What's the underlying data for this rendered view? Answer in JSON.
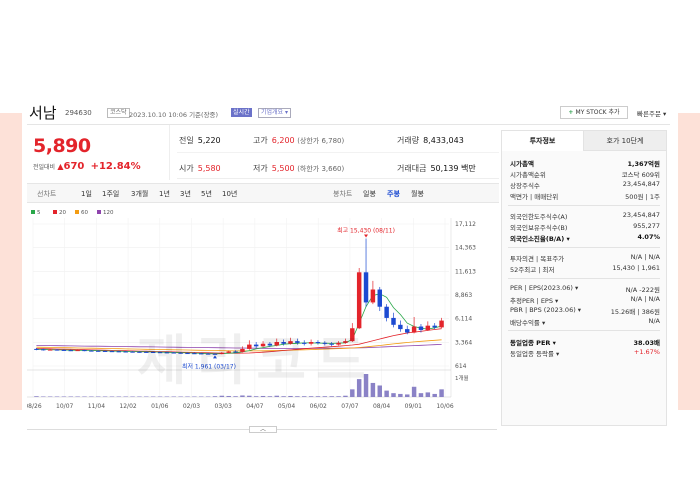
{
  "header": {
    "stock_name": "서남",
    "stock_code": "294630",
    "market": "코스닥",
    "datetime": "2023.10.10 10:06 기준(장중)",
    "badge_realtime": "실시간",
    "badge_company": "기업개요 ▾",
    "mystock_label": "MY STOCK 추가",
    "quick_order_label": "빠른주문 ▾"
  },
  "price": {
    "current": "5,890",
    "change_label": "전일대비",
    "change_amount": "670",
    "change_percent": "+12.84%"
  },
  "stats": {
    "prev_label": "전일",
    "prev_value": "5,220",
    "high_label": "고가",
    "high_value": "6,200",
    "high_sub": "(상한가 6,780)",
    "volume_label": "거래량",
    "volume_value": "8,433,043",
    "open_label": "시가",
    "open_value": "5,580",
    "low_label": "저가",
    "low_value": "5,500",
    "low_sub": "(하한가 3,660)",
    "amount_label": "거래대금",
    "amount_value": "50,139 백만"
  },
  "toolbar": {
    "line_chart": "선차트",
    "periods": [
      "1일",
      "1주일",
      "3개월",
      "1년",
      "3년",
      "5년",
      "10년"
    ],
    "candle_chart": "봉차트",
    "candle_periods": [
      "일봉",
      "주봉",
      "월봉"
    ],
    "active_candle": "주봉"
  },
  "chart_data": {
    "type": "candlestick",
    "legend": [
      "5",
      "20",
      "60",
      "120"
    ],
    "legend_colors": [
      "#2aa84a",
      "#e3242b",
      "#f39c12",
      "#8e44ad"
    ],
    "x_ticks": [
      "08/26",
      "10/07",
      "11/04",
      "12/02",
      "01/06",
      "02/03",
      "03/03",
      "04/07",
      "05/04",
      "06/02",
      "07/07",
      "08/04",
      "09/01",
      "10/06"
    ],
    "y_ticks": [
      17112,
      14363,
      11613,
      8863,
      6114,
      3364,
      614
    ],
    "ylim": [
      614,
      17112
    ],
    "high_annotation": "최고 15,430 (08/11)",
    "low_annotation": "최저 1,961 (03/17)",
    "volume_unit": "1개월",
    "candles": [
      {
        "o": 2600,
        "c": 2550,
        "h": 2700,
        "l": 2450
      },
      {
        "o": 2550,
        "c": 2500,
        "h": 2650,
        "l": 2400
      },
      {
        "o": 2500,
        "c": 2520,
        "h": 2600,
        "l": 2420
      },
      {
        "o": 2520,
        "c": 2480,
        "h": 2580,
        "l": 2400
      },
      {
        "o": 2480,
        "c": 2450,
        "h": 2550,
        "l": 2380
      },
      {
        "o": 2450,
        "c": 2430,
        "h": 2520,
        "l": 2350
      },
      {
        "o": 2430,
        "c": 2460,
        "h": 2530,
        "l": 2360
      },
      {
        "o": 2460,
        "c": 2400,
        "h": 2520,
        "l": 2330
      },
      {
        "o": 2400,
        "c": 2380,
        "h": 2460,
        "l": 2300
      },
      {
        "o": 2380,
        "c": 2360,
        "h": 2440,
        "l": 2280
      },
      {
        "o": 2360,
        "c": 2340,
        "h": 2420,
        "l": 2260
      },
      {
        "o": 2340,
        "c": 2320,
        "h": 2400,
        "l": 2250
      },
      {
        "o": 2320,
        "c": 2300,
        "h": 2380,
        "l": 2220
      },
      {
        "o": 2300,
        "c": 2280,
        "h": 2360,
        "l": 2200
      },
      {
        "o": 2280,
        "c": 2260,
        "h": 2340,
        "l": 2180
      },
      {
        "o": 2260,
        "c": 2250,
        "h": 2320,
        "l": 2170
      },
      {
        "o": 2250,
        "c": 2240,
        "h": 2310,
        "l": 2160
      },
      {
        "o": 2240,
        "c": 2220,
        "h": 2300,
        "l": 2150
      },
      {
        "o": 2220,
        "c": 2200,
        "h": 2280,
        "l": 2120
      },
      {
        "o": 2200,
        "c": 2180,
        "h": 2260,
        "l": 2100
      },
      {
        "o": 2180,
        "c": 2150,
        "h": 2240,
        "l": 2080
      },
      {
        "o": 2150,
        "c": 2120,
        "h": 2220,
        "l": 2050
      },
      {
        "o": 2120,
        "c": 2100,
        "h": 2200,
        "l": 2030
      },
      {
        "o": 2100,
        "c": 2080,
        "h": 2180,
        "l": 2010
      },
      {
        "o": 2080,
        "c": 2050,
        "h": 2150,
        "l": 1990
      },
      {
        "o": 2050,
        "c": 2030,
        "h": 2120,
        "l": 1980
      },
      {
        "o": 2030,
        "c": 2000,
        "h": 2100,
        "l": 1961
      },
      {
        "o": 2000,
        "c": 2150,
        "h": 2250,
        "l": 1970
      },
      {
        "o": 2150,
        "c": 2300,
        "h": 2400,
        "l": 2100
      },
      {
        "o": 2300,
        "c": 2250,
        "h": 2450,
        "l": 2150
      },
      {
        "o": 2250,
        "c": 2600,
        "h": 2900,
        "l": 2200
      },
      {
        "o": 2600,
        "c": 3100,
        "h": 3600,
        "l": 2500
      },
      {
        "o": 3100,
        "c": 2900,
        "h": 3400,
        "l": 2700
      },
      {
        "o": 2900,
        "c": 3200,
        "h": 3500,
        "l": 2800
      },
      {
        "o": 3200,
        "c": 3000,
        "h": 3400,
        "l": 2850
      },
      {
        "o": 3000,
        "c": 3400,
        "h": 3800,
        "l": 2900
      },
      {
        "o": 3400,
        "c": 3200,
        "h": 3700,
        "l": 3000
      },
      {
        "o": 3200,
        "c": 3500,
        "h": 3900,
        "l": 3100
      },
      {
        "o": 3500,
        "c": 3300,
        "h": 3800,
        "l": 3100
      },
      {
        "o": 3300,
        "c": 3200,
        "h": 3600,
        "l": 3000
      },
      {
        "o": 3200,
        "c": 3400,
        "h": 3700,
        "l": 3000
      },
      {
        "o": 3400,
        "c": 3300,
        "h": 3600,
        "l": 3100
      },
      {
        "o": 3300,
        "c": 3200,
        "h": 3500,
        "l": 3000
      },
      {
        "o": 3200,
        "c": 3100,
        "h": 3400,
        "l": 2900
      },
      {
        "o": 3100,
        "c": 3300,
        "h": 3500,
        "l": 3000
      },
      {
        "o": 3300,
        "c": 3500,
        "h": 3800,
        "l": 3200
      },
      {
        "o": 3500,
        "c": 5000,
        "h": 5600,
        "l": 3400
      },
      {
        "o": 5000,
        "c": 11500,
        "h": 12000,
        "l": 4900
      },
      {
        "o": 11500,
        "c": 8000,
        "h": 15430,
        "l": 7500
      },
      {
        "o": 8000,
        "c": 9500,
        "h": 10500,
        "l": 7800
      },
      {
        "o": 9500,
        "c": 7500,
        "h": 9800,
        "l": 7000
      },
      {
        "o": 7500,
        "c": 6200,
        "h": 7800,
        "l": 5800
      },
      {
        "o": 6200,
        "c": 5400,
        "h": 6800,
        "l": 5100
      },
      {
        "o": 5400,
        "c": 4900,
        "h": 5900,
        "l": 4600
      },
      {
        "o": 4900,
        "c": 4500,
        "h": 5300,
        "l": 4300
      },
      {
        "o": 4500,
        "c": 5200,
        "h": 6300,
        "l": 4400
      },
      {
        "o": 5200,
        "c": 4800,
        "h": 5500,
        "l": 4500
      },
      {
        "o": 4800,
        "c": 5300,
        "h": 5800,
        "l": 4700
      },
      {
        "o": 5300,
        "c": 5100,
        "h": 5600,
        "l": 4900
      },
      {
        "o": 5100,
        "c": 5890,
        "h": 6200,
        "l": 5000
      }
    ],
    "ma5": [
      2550,
      2530,
      2510,
      2490,
      2470,
      2450,
      2440,
      2430,
      2410,
      2390,
      2370,
      2350,
      2330,
      2310,
      2290,
      2270,
      2260,
      2245,
      2225,
      2205,
      2185,
      2160,
      2135,
      2110,
      2085,
      2060,
      2035,
      2050,
      2100,
      2150,
      2250,
      2400,
      2600,
      2750,
      2900,
      3000,
      3150,
      3200,
      3250,
      3300,
      3300,
      3280,
      3260,
      3240,
      3260,
      3300,
      3700,
      5600,
      7500,
      8800,
      9000,
      8600,
      7400,
      6600,
      5600,
      5200,
      5000,
      4900,
      5050,
      5260
    ],
    "ma20": [
      2650,
      2630,
      2610,
      2590,
      2570,
      2550,
      2530,
      2510,
      2490,
      2470,
      2450,
      2430,
      2410,
      2390,
      2370,
      2350,
      2330,
      2310,
      2290,
      2270,
      2250,
      2230,
      2210,
      2190,
      2170,
      2150,
      2130,
      2110,
      2100,
      2100,
      2110,
      2130,
      2170,
      2220,
      2280,
      2340,
      2410,
      2480,
      2550,
      2620,
      2680,
      2740,
      2800,
      2860,
      2920,
      2980,
      3050,
      3150,
      3350,
      3550,
      3750,
      3950,
      4150,
      4300,
      4450,
      4550,
      4650,
      4750,
      4850,
      4950
    ],
    "ma60": [
      2800,
      2785,
      2770,
      2755,
      2740,
      2725,
      2710,
      2695,
      2680,
      2665,
      2650,
      2635,
      2620,
      2605,
      2590,
      2575,
      2560,
      2545,
      2530,
      2515,
      2500,
      2485,
      2470,
      2455,
      2440,
      2425,
      2410,
      2395,
      2380,
      2370,
      2365,
      2365,
      2370,
      2380,
      2395,
      2410,
      2430,
      2450,
      2475,
      2500,
      2525,
      2550,
      2580,
      2610,
      2640,
      2670,
      2710,
      2760,
      2830,
      2910,
      3000,
      3090,
      3180,
      3260,
      3340,
      3410,
      3480,
      3540,
      3600,
      3660
    ],
    "ma120": [
      3000,
      2990,
      2980,
      2970,
      2960,
      2950,
      2940,
      2930,
      2920,
      2910,
      2900,
      2890,
      2880,
      2870,
      2860,
      2850,
      2840,
      2830,
      2820,
      2810,
      2800,
      2790,
      2780,
      2770,
      2760,
      2750,
      2740,
      2730,
      2720,
      2710,
      2700,
      2690,
      2680,
      2670,
      2665,
      2660,
      2655,
      2650,
      2650,
      2650,
      2655,
      2660,
      2665,
      2670,
      2680,
      2690,
      2705,
      2720,
      2745,
      2775,
      2810,
      2845,
      2880,
      2915,
      2950,
      2985,
      3020,
      3055,
      3090,
      3125
    ],
    "volume": [
      3,
      2,
      2,
      2,
      2,
      2,
      2,
      2,
      2,
      2,
      2,
      2,
      2,
      2,
      2,
      2,
      2,
      2,
      2,
      2,
      2,
      2,
      2,
      2,
      2,
      2,
      3,
      5,
      4,
      3,
      6,
      5,
      3,
      4,
      3,
      5,
      3,
      4,
      3,
      3,
      3,
      3,
      3,
      3,
      3,
      5,
      30,
      70,
      90,
      55,
      45,
      25,
      15,
      12,
      10,
      40,
      15,
      18,
      12,
      30
    ]
  },
  "info_panel": {
    "tab_active": "투자정보",
    "tab_inactive": "호가 10단계",
    "rows": [
      {
        "k": "시가총액",
        "v": "1,367억원",
        "bold": true
      },
      {
        "k": "시가총액순위",
        "v": "코스닥 609위"
      },
      {
        "k": "상장주식수",
        "v": "23,454,847"
      },
      {
        "k": "액면가 | 매매단위",
        "v": "500원 | 1주"
      },
      {
        "k": "외국인한도주식수(A)",
        "v": "23,454,847"
      },
      {
        "k": "외국인보유주식수(B)",
        "v": "955,277"
      },
      {
        "k": "외국인소진율(B/A) ▾",
        "v": "4.07%",
        "bold": true
      },
      {
        "k": "투자의견 | 목표주가",
        "v": "N/A | N/A"
      },
      {
        "k": "52주최고 | 최저",
        "v": "15,430 | 1,961"
      },
      {
        "k": "PER | EPS(2023.06) ▾",
        "v": "N/A  -222원"
      },
      {
        "k": "추정PER | EPS ▾",
        "v": "N/A | N/A"
      },
      {
        "k": "PBR | BPS (2023.06) ▾",
        "v": "15.26배 | 386원"
      },
      {
        "k": "배당수익률 ▾",
        "v": "N/A"
      },
      {
        "k": "동일업종 PER ▾",
        "v": "38.03배",
        "bold": true
      },
      {
        "k": "동일업종 등락률 ▾",
        "v": "+1.67%",
        "red": true
      }
    ]
  },
  "colors": {
    "up": "#e3242b",
    "down": "#1c4ad1",
    "accent": "#6b72c9",
    "side_decor": "#fde1d8"
  },
  "watermark": "제리코드"
}
